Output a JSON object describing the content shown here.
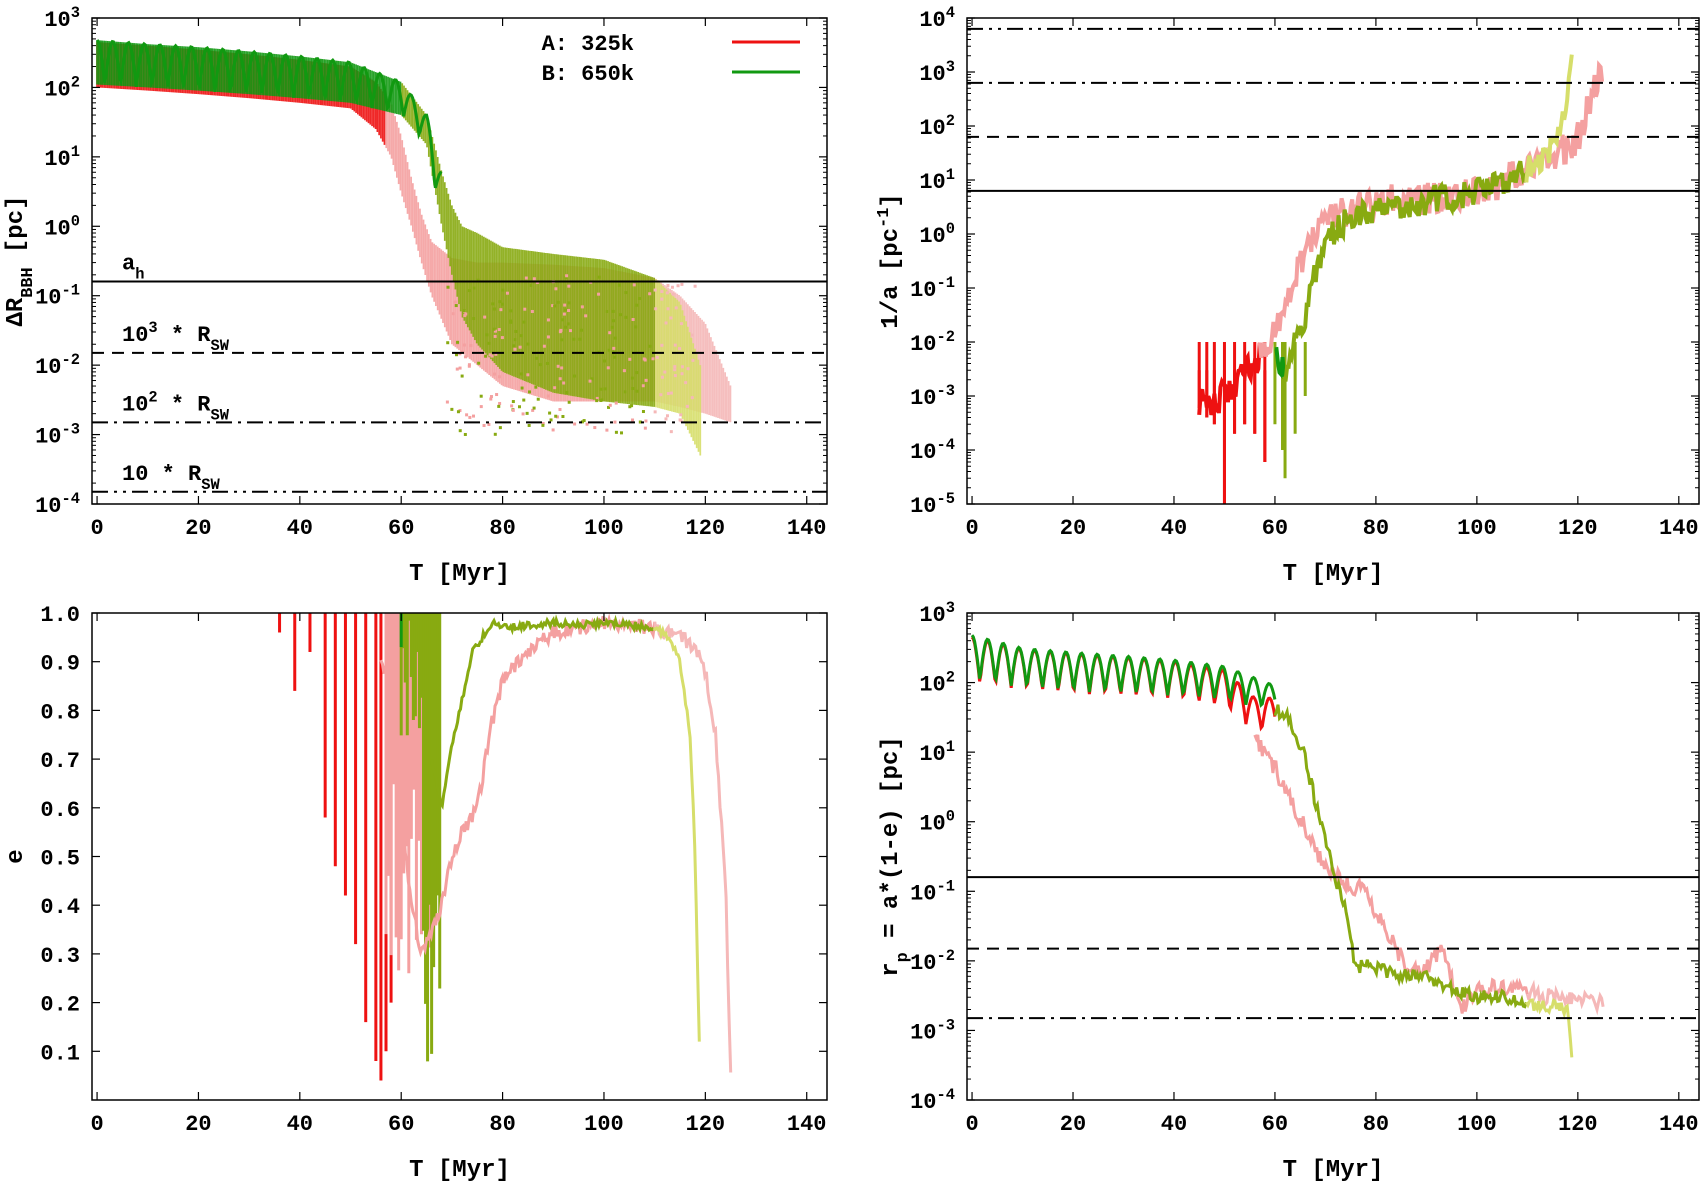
{
  "figure": {
    "colors": {
      "A_early": "#ee1111",
      "A_late": "#f4a0a0",
      "B_early": "#119911",
      "B_mid": "#88aa11",
      "B_late": "#d6de6a",
      "A_tail": "#f5b8b8"
    },
    "legend": {
      "entries": [
        {
          "label": "A: 325k",
          "color": "#ee1111"
        },
        {
          "label": "B: 650k",
          "color": "#119911"
        }
      ]
    }
  },
  "chart_data": [
    {
      "type": "line",
      "panel": "top-left",
      "xlabel": "T [Myr]",
      "ylabel": {
        "main": "ΔR",
        "sub": "BBH",
        "post": " [pc]"
      },
      "xlim": [
        -1,
        144
      ],
      "ylim_log10": [
        -4,
        3
      ],
      "yscale": "log",
      "xticks": [
        0,
        20,
        40,
        60,
        80,
        100,
        120,
        140
      ],
      "yticks_exp": [
        -4,
        -3,
        -2,
        -1,
        0,
        1,
        2,
        3
      ],
      "reference_lines": [
        {
          "y": 0.16,
          "style": "solid",
          "label_main": "a",
          "label_sub": "h",
          "label_sup": ""
        },
        {
          "y": 0.015,
          "style": "dashed",
          "label_main": "10",
          "label_sup": "3",
          "label_post": " * R",
          "label_sub": "SW"
        },
        {
          "y": 0.0015,
          "style": "dashdot",
          "label_main": "10",
          "label_sup": "2",
          "label_post": " * R",
          "label_sub": "SW"
        },
        {
          "y": 0.00015,
          "style": "dashdotdot",
          "label_main": "10 * R",
          "label_sub": "SW",
          "label_sup": ""
        }
      ],
      "series": [
        {
          "name": "A: 325k",
          "x": [
            0,
            10,
            20,
            30,
            40,
            50,
            55,
            58,
            60,
            62,
            64,
            66,
            70,
            75,
            80,
            90,
            100,
            110,
            115,
            120,
            125
          ],
          "upper": [
            450,
            400,
            350,
            300,
            250,
            200,
            120,
            60,
            20,
            5,
            1.5,
            0.6,
            0.35,
            0.3,
            0.3,
            0.28,
            0.25,
            0.18,
            0.1,
            0.04,
            0.005
          ],
          "lower": [
            100,
            90,
            80,
            70,
            60,
            50,
            25,
            10,
            3,
            1,
            0.3,
            0.1,
            0.02,
            0.01,
            0.005,
            0.003,
            0.003,
            0.003,
            0.0025,
            0.002,
            0.0015
          ]
        },
        {
          "name": "B: 650k",
          "x": [
            0,
            10,
            20,
            30,
            40,
            50,
            60,
            65,
            68,
            70,
            72,
            75,
            80,
            90,
            100,
            110,
            115,
            119
          ],
          "upper": [
            480,
            420,
            380,
            330,
            280,
            230,
            120,
            40,
            6,
            2,
            1,
            0.8,
            0.5,
            0.4,
            0.33,
            0.18,
            0.08,
            0.01
          ],
          "lower": [
            110,
            100,
            90,
            80,
            70,
            60,
            40,
            15,
            1,
            0.2,
            0.05,
            0.02,
            0.008,
            0.004,
            0.003,
            0.0025,
            0.002,
            0.0005
          ]
        }
      ]
    },
    {
      "type": "line",
      "panel": "top-right",
      "xlabel": "T [Myr]",
      "ylabel": {
        "main": "1/a [pc",
        "sup": "-1",
        "post": "]"
      },
      "xlim": [
        -1,
        144
      ],
      "ylim_log10": [
        -5,
        4
      ],
      "yscale": "log",
      "xticks": [
        0,
        20,
        40,
        60,
        80,
        100,
        120,
        140
      ],
      "yticks_exp": [
        -5,
        -4,
        -3,
        -2,
        -1,
        0,
        1,
        2,
        3,
        4
      ],
      "reference_lines": [
        {
          "y": 6.3,
          "style": "solid"
        },
        {
          "y": 63,
          "style": "dashed"
        },
        {
          "y": 630,
          "style": "dashdot"
        },
        {
          "y": 6300,
          "style": "dashdotdot"
        }
      ],
      "series": [
        {
          "name": "A: 325k",
          "x": [
            45,
            50,
            55,
            58,
            60,
            62,
            65,
            70,
            80,
            90,
            100,
            110,
            115,
            120,
            125
          ],
          "values": [
            0.0008,
            0.001,
            0.003,
            0.008,
            0.02,
            0.05,
            0.3,
            2,
            4,
            4.5,
            6,
            15,
            25,
            60,
            1500
          ]
        },
        {
          "name": "B: 650k",
          "x": [
            60,
            62,
            64,
            66,
            68,
            70,
            75,
            80,
            90,
            100,
            110,
            115,
            118,
            119
          ],
          "values": [
            0.005,
            0.003,
            0.01,
            0.03,
            0.2,
            0.8,
            2,
            3,
            4,
            6,
            15,
            40,
            300,
            3000
          ]
        }
      ]
    },
    {
      "type": "line",
      "panel": "bottom-left",
      "xlabel": "T [Myr]",
      "ylabel": "e",
      "xlim": [
        -1,
        144
      ],
      "ylim": [
        0,
        1
      ],
      "yscale": "linear",
      "xticks": [
        0,
        20,
        40,
        60,
        80,
        100,
        120,
        140
      ],
      "yticks": [
        0.1,
        0.2,
        0.3,
        0.4,
        0.5,
        0.6,
        0.7,
        0.8,
        0.9,
        1.0
      ],
      "ytick_labels": [
        "0.1",
        "0.2",
        "0.3",
        "0.4",
        "0.5",
        "0.6",
        "0.7",
        "0.8",
        "0.9",
        "1.0"
      ],
      "series": [
        {
          "name": "A: 325k",
          "x": [
            56,
            58,
            60,
            62,
            64,
            66,
            68,
            70,
            72,
            75,
            78,
            80,
            85,
            90,
            95,
            100,
            105,
            110,
            115,
            118,
            120,
            122,
            124,
            125
          ],
          "values": [
            0.9,
            0.85,
            0.6,
            0.4,
            0.3,
            0.35,
            0.4,
            0.5,
            0.55,
            0.6,
            0.78,
            0.86,
            0.92,
            0.96,
            0.97,
            0.98,
            0.975,
            0.97,
            0.95,
            0.93,
            0.88,
            0.75,
            0.45,
            0.05
          ]
        },
        {
          "name": "B: 650k",
          "x": [
            66,
            68,
            70,
            72,
            74,
            76,
            78,
            80,
            85,
            90,
            95,
            100,
            105,
            110,
            113,
            115,
            117,
            118,
            119
          ],
          "values": [
            0.7,
            0.6,
            0.73,
            0.82,
            0.92,
            0.95,
            0.98,
            0.97,
            0.975,
            0.98,
            0.975,
            0.98,
            0.975,
            0.97,
            0.95,
            0.9,
            0.75,
            0.5,
            0.02
          ]
        }
      ]
    },
    {
      "type": "line",
      "panel": "bottom-right",
      "xlabel": "T [Myr]",
      "ylabel": {
        "main": "r",
        "sub": "p",
        "post": " = a*(1-e) [pc]"
      },
      "xlim": [
        -1,
        144
      ],
      "ylim_log10": [
        -4,
        3
      ],
      "yscale": "log",
      "xticks": [
        0,
        20,
        40,
        60,
        80,
        100,
        120,
        140
      ],
      "yticks_exp": [
        -4,
        -3,
        -2,
        -1,
        0,
        1,
        2,
        3
      ],
      "reference_lines": [
        {
          "y": 0.16,
          "style": "solid"
        },
        {
          "y": 0.015,
          "style": "dashed"
        },
        {
          "y": 0.0015,
          "style": "dashdot"
        }
      ],
      "series": [
        {
          "name": "A: 325k",
          "x": [
            56,
            58,
            60,
            62,
            64,
            66,
            68,
            70,
            72,
            75,
            78,
            80,
            83,
            86,
            90,
            93,
            95,
            97,
            100,
            105,
            110,
            115,
            120,
            125
          ],
          "values": [
            15,
            10,
            6,
            3,
            1.5,
            0.8,
            0.4,
            0.2,
            0.18,
            0.12,
            0.1,
            0.05,
            0.02,
            0.008,
            0.008,
            0.015,
            0.005,
            0.002,
            0.004,
            0.004,
            0.0035,
            0.003,
            0.0028,
            0.0025
          ]
        },
        {
          "name": "B: 650k",
          "x": [
            60,
            62,
            64,
            66,
            68,
            70,
            72,
            74,
            75,
            76,
            78,
            80,
            85,
            90,
            95,
            100,
            105,
            110,
            115,
            118,
            119
          ],
          "values": [
            40,
            35,
            20,
            8,
            2,
            0.6,
            0.15,
            0.05,
            0.02,
            0.007,
            0.01,
            0.008,
            0.006,
            0.006,
            0.004,
            0.003,
            0.003,
            0.0025,
            0.0022,
            0.002,
            0.0003
          ]
        }
      ]
    }
  ]
}
